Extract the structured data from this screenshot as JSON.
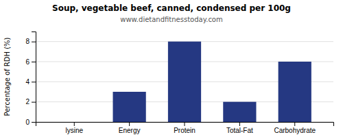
{
  "chart_data": {
    "type": "bar",
    "title": "Soup, vegetable beef, canned, condensed per 100g",
    "subtitle": "www.dietandfitnesstoday.com",
    "categories": [
      "lysine",
      "Energy",
      "Protein",
      "Total-Fat",
      "Carbohydrate"
    ],
    "values": [
      0,
      3,
      8,
      2,
      6
    ],
    "color": "#253882",
    "ylabel": "Percentage of RDH (%)",
    "ylim": [
      0,
      9
    ],
    "yticks": [
      0,
      2,
      4,
      6,
      8
    ],
    "grid": true
  }
}
